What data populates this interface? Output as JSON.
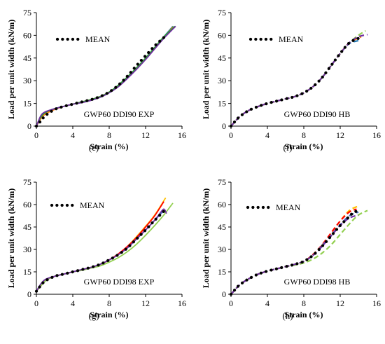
{
  "chart_data": [
    {
      "type": "line",
      "panel_caption": "(e)",
      "annotation": "GWP60 DDI90 EXP",
      "xlabel": "Strain (%)",
      "ylabel": "Load per unit width (kN/m)",
      "xlim": [
        0,
        16
      ],
      "ylim": [
        0,
        75
      ],
      "xticks": [
        "0",
        "4",
        "8",
        "12",
        "16"
      ],
      "yticks": [
        "0",
        "15",
        "30",
        "45",
        "60",
        "75"
      ],
      "grid": false,
      "legend": {
        "position": "top-left",
        "label": "MEAN"
      },
      "series": [
        {
          "name": "MEAN",
          "style": "dotted",
          "color": "#000000",
          "x": [
            0,
            0.5,
            1,
            2,
            3,
            4,
            5,
            6,
            7,
            8,
            9,
            10,
            11,
            12,
            13,
            14
          ],
          "y": [
            0,
            3.5,
            7,
            11,
            13,
            14.5,
            16,
            17.5,
            19.5,
            22.5,
            27,
            33,
            40,
            46.5,
            53,
            58.5
          ]
        },
        {
          "style": "solid",
          "color": "#1f77b4",
          "x": [
            0,
            0.5,
            1,
            2,
            3,
            4,
            5,
            6,
            7,
            8,
            9,
            10,
            11,
            12,
            13,
            14,
            15
          ],
          "y": [
            0,
            6,
            9,
            11.5,
            13,
            14.5,
            16,
            17.5,
            19.5,
            22.5,
            27,
            32.5,
            38.5,
            45,
            52,
            59,
            66
          ]
        },
        {
          "style": "solid",
          "color": "#ff7f0e",
          "x": [
            0,
            0.5,
            1,
            2,
            3,
            4,
            5,
            6,
            7,
            8,
            9,
            10,
            11,
            12,
            13,
            14,
            15
          ],
          "y": [
            0,
            5,
            8,
            11,
            13,
            14.5,
            16,
            17.5,
            19.5,
            22.5,
            26.5,
            32,
            38,
            44.5,
            51.5,
            58.5,
            65.5
          ]
        },
        {
          "style": "solid",
          "color": "#2ca02c",
          "x": [
            0,
            0.5,
            1,
            2,
            3,
            4,
            5,
            6,
            7,
            8,
            9,
            10,
            11,
            12,
            13,
            14,
            15.2
          ],
          "y": [
            0,
            6,
            9,
            11.5,
            13,
            14.5,
            16,
            17.5,
            19.5,
            22.5,
            27,
            32.5,
            38.5,
            45,
            52,
            59,
            66
          ]
        },
        {
          "style": "solid",
          "color": "#7030a0",
          "x": [
            0,
            0.5,
            1,
            2,
            3,
            4,
            5,
            6,
            7,
            8,
            9,
            10,
            11,
            12,
            13,
            14,
            15.3
          ],
          "y": [
            0,
            7,
            9.5,
            11.5,
            13,
            14.5,
            15.5,
            17,
            19,
            22,
            26,
            31.5,
            37.5,
            44,
            51,
            58,
            66
          ]
        }
      ]
    },
    {
      "type": "line",
      "panel_caption": "(f)",
      "annotation": "GWP60 DDI90 HB",
      "xlabel": "Strain (%)",
      "ylabel": "Load per unit width (kN/m)",
      "xlim": [
        0,
        16
      ],
      "ylim": [
        0,
        75
      ],
      "xticks": [
        "0",
        "4",
        "8",
        "12",
        "16"
      ],
      "yticks": [
        "0",
        "15",
        "30",
        "45",
        "60",
        "75"
      ],
      "grid": false,
      "legend": {
        "position": "top-left",
        "label": "MEAN"
      },
      "series": [
        {
          "name": "MEAN",
          "style": "dotted",
          "color": "#000000",
          "x": [
            0,
            0.5,
            1,
            2,
            3,
            4,
            5,
            6,
            7,
            8,
            9,
            10,
            11,
            12,
            13,
            14
          ],
          "y": [
            0,
            3.5,
            6.5,
            10.5,
            13,
            15,
            16.5,
            18,
            19.5,
            22,
            26,
            32,
            40,
            48,
            55,
            58
          ]
        },
        {
          "style": "dashed",
          "color": "#1f77b4",
          "x": [
            0,
            1,
            2,
            3,
            4,
            5,
            6,
            7,
            8,
            9,
            10,
            11,
            12,
            13,
            14
          ],
          "y": [
            0,
            6.5,
            10.5,
            13,
            15,
            16.5,
            18,
            19.5,
            22,
            26,
            32,
            40,
            48,
            54.5,
            56.5
          ]
        },
        {
          "style": "dashed",
          "color": "#ff7f0e",
          "x": [
            0,
            1,
            2,
            3,
            4,
            5,
            6,
            7,
            8,
            9,
            10,
            11,
            12,
            13,
            14.3
          ],
          "y": [
            0,
            6.5,
            10.5,
            13,
            15,
            16.5,
            18,
            19.5,
            22,
            26,
            32,
            40,
            48,
            55,
            59
          ]
        },
        {
          "style": "dashed",
          "color": "#92d050",
          "x": [
            0,
            1,
            2,
            3,
            4,
            5,
            6,
            7,
            8,
            9,
            10,
            11,
            12,
            13,
            14,
            14.8
          ],
          "y": [
            0,
            6.5,
            10.5,
            13,
            15,
            16.5,
            18,
            19.5,
            22,
            26,
            32,
            40,
            48,
            55,
            60,
            63
          ]
        },
        {
          "style": "dashed",
          "color": "#7030a0",
          "x": [
            0,
            1,
            2,
            3,
            4,
            5,
            6,
            7,
            8,
            9,
            10,
            11,
            12,
            13,
            14,
            15
          ],
          "y": [
            0,
            6.5,
            10.5,
            13,
            15,
            16.5,
            18,
            19.5,
            22,
            26,
            32,
            40,
            48,
            55,
            59,
            60.5
          ]
        }
      ]
    },
    {
      "type": "line",
      "panel_caption": "(g)",
      "annotation": "GWP60 DDI98 EXP",
      "xlabel": "Strain (%)",
      "ylabel": "Load per unit width (kN/m)",
      "xlim": [
        0,
        16
      ],
      "ylim": [
        0,
        75
      ],
      "xticks": [
        "0",
        "4",
        "8",
        "12",
        "16"
      ],
      "yticks": [
        "0",
        "15",
        "30",
        "45",
        "60",
        "75"
      ],
      "grid": false,
      "legend": {
        "position": "top-left",
        "label": "MEAN"
      },
      "series": [
        {
          "name": "MEAN",
          "style": "dotted",
          "color": "#000000",
          "x": [
            0,
            0.5,
            1,
            2,
            3,
            4,
            5,
            6,
            7,
            8,
            9,
            10,
            11,
            12,
            13,
            14
          ],
          "y": [
            2,
            6,
            9,
            12,
            13.5,
            15,
            16.5,
            18,
            20,
            23,
            26.5,
            31,
            37,
            43,
            49.5,
            55.5
          ]
        },
        {
          "style": "solid",
          "color": "#ffc000",
          "x": [
            0,
            1,
            2,
            3,
            4,
            5,
            6,
            7,
            8,
            9,
            10,
            11,
            12,
            13,
            14.2
          ],
          "y": [
            2,
            9,
            12,
            13.5,
            15,
            16.5,
            18,
            20,
            23,
            27,
            32,
            38.5,
            45.5,
            53,
            64.5
          ]
        },
        {
          "style": "solid",
          "color": "#ff0000",
          "x": [
            0,
            1,
            2,
            3,
            4,
            5,
            6,
            7,
            8,
            9,
            10,
            11,
            12,
            13,
            14
          ],
          "y": [
            2,
            9,
            12,
            13.5,
            15,
            16.5,
            18,
            20,
            23,
            27,
            32,
            38,
            45,
            52.5,
            62
          ]
        },
        {
          "style": "solid",
          "color": "#4472c4",
          "x": [
            0,
            1,
            2,
            3,
            4,
            5,
            6,
            7,
            8,
            9,
            10,
            11,
            12,
            13,
            14
          ],
          "y": [
            2,
            9,
            12,
            13.5,
            15,
            16.5,
            18,
            20,
            23,
            26.5,
            31,
            37,
            43,
            49.5,
            56
          ]
        },
        {
          "style": "solid",
          "color": "#92d050",
          "x": [
            0,
            1,
            2,
            3,
            4,
            5,
            6,
            7,
            8,
            9,
            10,
            11,
            12,
            13,
            14,
            15
          ],
          "y": [
            2,
            9,
            12,
            13.5,
            15,
            16,
            17.5,
            19,
            21.5,
            24.5,
            28.5,
            33.5,
            39.5,
            46,
            53,
            61
          ]
        },
        {
          "style": "solid",
          "color": "#7030a0",
          "x": [
            0,
            0.5,
            1,
            2,
            3,
            4,
            5,
            6,
            7,
            8,
            9,
            10,
            11,
            12,
            13,
            13.5,
            14,
            14.3
          ],
          "y": [
            2,
            7,
            10,
            12,
            13.5,
            15,
            16.5,
            18,
            20,
            23,
            26.5,
            31,
            37,
            43,
            49.5,
            53.5,
            57,
            54
          ]
        }
      ]
    },
    {
      "type": "line",
      "panel_caption": "(h)",
      "annotation": "GWP60 DDI98 HB",
      "xlabel": "Strain (%)",
      "ylabel": "Load per unit width (kN/m)",
      "xlim": [
        0,
        16
      ],
      "ylim": [
        0,
        75
      ],
      "xticks": [
        "0",
        "4",
        "8",
        "12",
        "16"
      ],
      "yticks": [
        "0",
        "15",
        "30",
        "45",
        "60",
        "75"
      ],
      "grid": false,
      "legend": {
        "position": "top-left",
        "label": "MEAN"
      },
      "series": [
        {
          "name": "MEAN",
          "style": "dotted",
          "color": "#000000",
          "x": [
            0,
            0.5,
            1,
            2,
            3,
            4,
            5,
            6,
            7,
            8,
            9,
            10,
            11,
            12,
            13,
            13.5,
            14
          ],
          "y": [
            0,
            3.5,
            6.5,
            10.5,
            13.5,
            15.5,
            17,
            18.5,
            20,
            22,
            26,
            32,
            39,
            46,
            52,
            55,
            55.5
          ]
        },
        {
          "style": "dashed",
          "color": "#ffc000",
          "x": [
            0,
            1,
            2,
            3,
            4,
            5,
            6,
            7,
            8,
            9,
            10,
            11,
            12,
            13,
            14
          ],
          "y": [
            0,
            6.5,
            10.5,
            13.5,
            15.5,
            17,
            18.5,
            20,
            22,
            26.5,
            33,
            41,
            49,
            56,
            59
          ]
        },
        {
          "style": "dashed",
          "color": "#ff0000",
          "x": [
            0,
            1,
            2,
            3,
            4,
            5,
            6,
            7,
            8,
            9,
            10,
            11,
            12,
            13,
            13.8
          ],
          "y": [
            0,
            6.5,
            10.5,
            13.5,
            15.5,
            17,
            18.5,
            20,
            22,
            26.5,
            33,
            41,
            49,
            55,
            57
          ]
        },
        {
          "style": "dashed",
          "color": "#4472c4",
          "x": [
            0,
            1,
            2,
            3,
            4,
            5,
            6,
            7,
            8,
            9,
            10,
            11,
            12,
            13,
            14
          ],
          "y": [
            0,
            6.5,
            10.5,
            13.5,
            15.5,
            17,
            18.5,
            20,
            22,
            26,
            32.5,
            39.5,
            46.5,
            52.5,
            55
          ]
        },
        {
          "style": "dashed",
          "color": "#92d050",
          "x": [
            0,
            1,
            2,
            3,
            4,
            5,
            6,
            7,
            8,
            9,
            10,
            11,
            12,
            13,
            14,
            15
          ],
          "y": [
            0,
            6.5,
            10.5,
            13.5,
            15.5,
            17,
            18.5,
            19.5,
            21,
            23.5,
            27.5,
            33,
            40,
            47,
            53,
            56
          ]
        },
        {
          "style": "dashed",
          "color": "#7030a0",
          "x": [
            0,
            1,
            2,
            3,
            4,
            5,
            6,
            7,
            8,
            9,
            10,
            11,
            12,
            13,
            14
          ],
          "y": [
            0,
            6.5,
            10.5,
            13.5,
            15.5,
            17,
            18.5,
            20,
            22,
            26,
            32,
            39,
            46,
            51,
            53
          ]
        }
      ]
    }
  ]
}
